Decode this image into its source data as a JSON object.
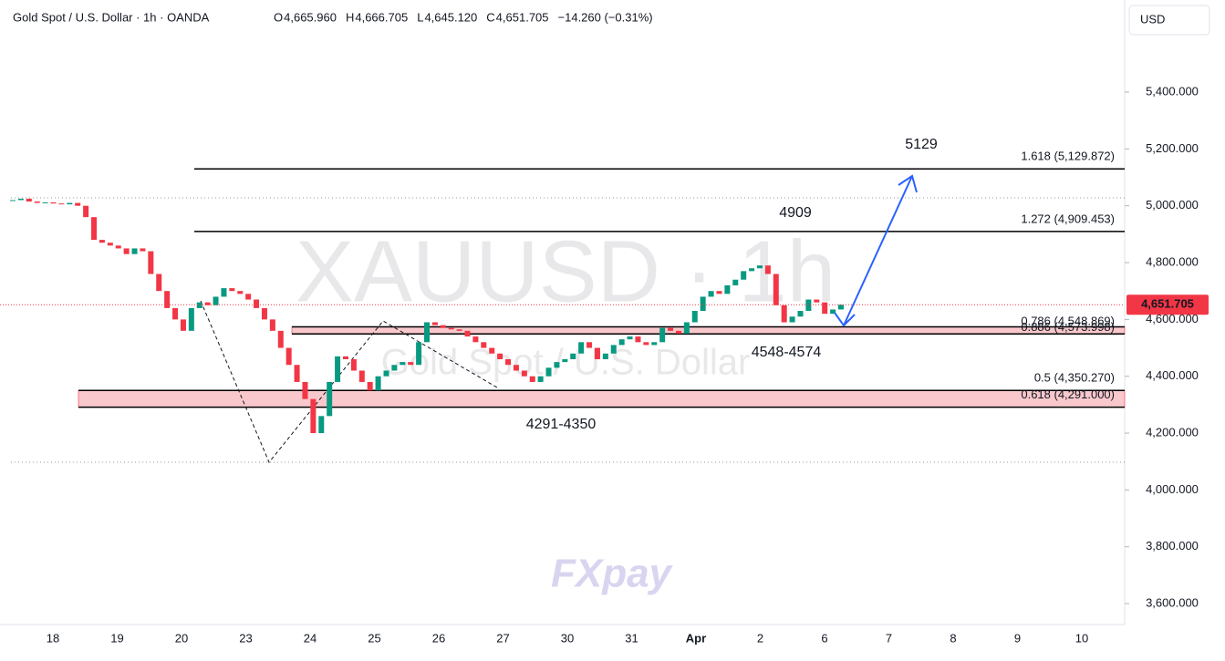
{
  "header": {
    "symbol": "Gold Spot / U.S. Dollar · 1h · OANDA",
    "ohlc": [
      {
        "key": "O",
        "value": "4,665.960"
      },
      {
        "key": "H",
        "value": "4,666.705"
      },
      {
        "key": "L",
        "value": "4,645.120"
      },
      {
        "key": "C",
        "value": "4,651.705"
      }
    ],
    "change": "−14.260 (−0.31%)",
    "currency": "USD"
  },
  "watermark": {
    "ticker": "XAUUSD · 1h",
    "name": "Gold Spot / U.S. Dollar",
    "logo": "FXpay"
  },
  "chart_data": {
    "type": "candlestick",
    "categories": [
      "18",
      "19",
      "20",
      "23",
      "24",
      "25",
      "26",
      "27",
      "30",
      "31",
      "Apr",
      "2",
      "6",
      "7",
      "8",
      "9",
      "10"
    ],
    "closes": [
      5020,
      5025,
      5015,
      5010,
      5012,
      5008,
      5005,
      5010,
      5000,
      4960,
      4880,
      4870,
      4860,
      4850,
      4830,
      4850,
      4840,
      4760,
      4700,
      4640,
      4600,
      4560,
      4640,
      4660,
      4650,
      4680,
      4710,
      4700,
      4690,
      4670,
      4640,
      4600,
      4560,
      4500,
      4440,
      4380,
      4320,
      4200,
      4260,
      4380,
      4470,
      4460,
      4420,
      4380,
      4350,
      4400,
      4420,
      4440,
      4450,
      4440,
      4520,
      4590,
      4580,
      4570,
      4565,
      4560,
      4540,
      4520,
      4500,
      4480,
      4460,
      4440,
      4420,
      4400,
      4380,
      4400,
      4430,
      4450,
      4460,
      4480,
      4520,
      4500,
      4460,
      4480,
      4510,
      4530,
      4540,
      4520,
      4510,
      4520,
      4570,
      4560,
      4550,
      4590,
      4630,
      4680,
      4700,
      4690,
      4720,
      4740,
      4770,
      4780,
      4790,
      4760,
      4650,
      4590,
      4610,
      4630,
      4670,
      4660,
      4620,
      4635,
      4651.705
    ],
    "last_price": {
      "value": 4651.705,
      "label": "4,651.705"
    },
    "up_color": "#089981",
    "down_color": "#f23645",
    "ylim": [
      3526.4,
      5724.1
    ],
    "yticks": [
      {
        "value": 3600,
        "label": "3,600.000"
      },
      {
        "value": 3800,
        "label": "3,800.000"
      },
      {
        "value": 4000,
        "label": "4,000.000"
      },
      {
        "value": 4200,
        "label": "4,200.000"
      },
      {
        "value": 4400,
        "label": "4,400.000"
      },
      {
        "value": 4600,
        "label": "4,600.000"
      },
      {
        "value": 4800,
        "label": "4,800.000"
      },
      {
        "value": 5000,
        "label": "5,000.000"
      },
      {
        "value": 5200,
        "label": "5,200.000"
      },
      {
        "value": 5400,
        "label": "5,400.000"
      }
    ],
    "levels": [
      {
        "value": 5129.872,
        "label": "1.618 (5,129.872)"
      },
      {
        "value": 4909.453,
        "label": "1.272 (4,909.453)"
      },
      {
        "value": 4573.998,
        "label": "0.886 (4,573.998)"
      },
      {
        "value": 4548.869,
        "label": "0.786 (4,548.869)"
      },
      {
        "value": 4350.27,
        "label": "0.5 (4,350.270)"
      },
      {
        "value": 4291,
        "label": "0.618 (4,291.000)"
      }
    ],
    "annotations": [
      "5129",
      "4909",
      "4548-4574",
      "4291-4350"
    ]
  }
}
